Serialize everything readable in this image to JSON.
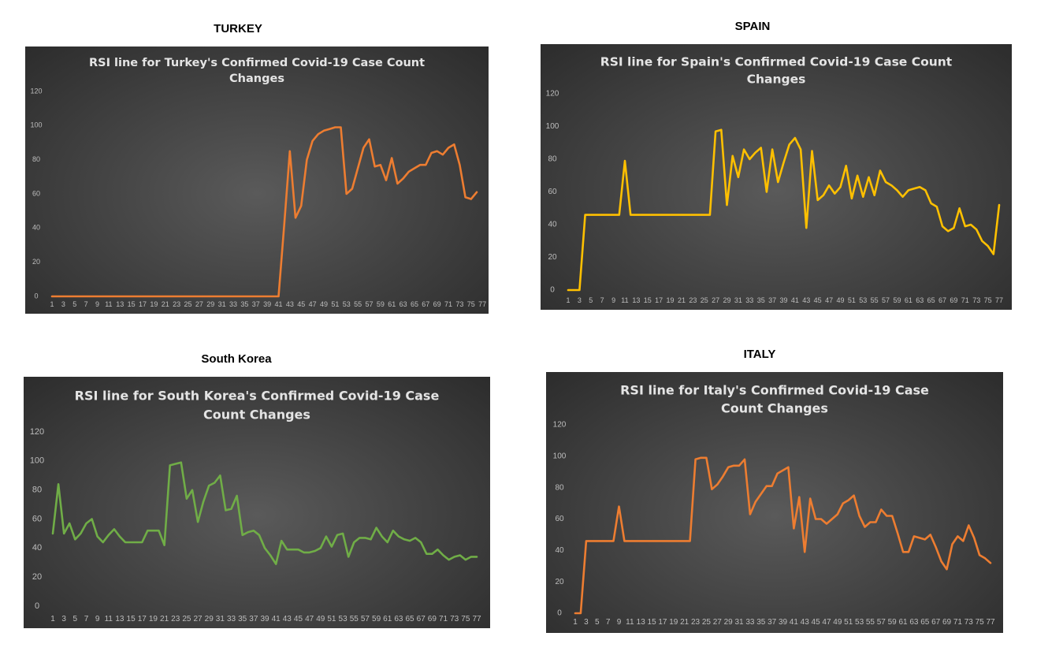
{
  "headings": {
    "turkey": "TURKEY",
    "spain": "SPAIN",
    "south_korea": "South Korea",
    "italy": "ITALY"
  },
  "chart_data": [
    {
      "id": "turkey",
      "type": "line",
      "title": "RSI line for Turkey's Confirmed Covid-19 Case Count Changes",
      "title_lines": [
        "RSI line for Turkey's Confirmed Covid-19 Case Count",
        "Changes"
      ],
      "color": "#ed7d31",
      "ylim": [
        0,
        120
      ],
      "yticks": [
        0,
        20,
        40,
        60,
        80,
        100,
        120
      ],
      "xticks": [
        "1",
        "3",
        "5",
        "7",
        "9",
        "11",
        "13",
        "15",
        "17",
        "19",
        "21",
        "23",
        "25",
        "27",
        "29",
        "31",
        "33",
        "35",
        "37",
        "39",
        "41",
        "43",
        "45",
        "47",
        "49",
        "51",
        "53",
        "55",
        "57",
        "59",
        "61",
        "63",
        "65",
        "67",
        "69",
        "71",
        "73",
        "75",
        "77"
      ],
      "series": [
        {
          "name": "RSI",
          "values": [
            0,
            0,
            0,
            0,
            0,
            0,
            0,
            0,
            0,
            0,
            0,
            0,
            0,
            0,
            0,
            0,
            0,
            0,
            0,
            0,
            0,
            0,
            0,
            0,
            0,
            0,
            0,
            0,
            0,
            0,
            0,
            0,
            0,
            0,
            0,
            0,
            0,
            0,
            0,
            0,
            0,
            42,
            85,
            46,
            53,
            80,
            91,
            95,
            97,
            98,
            99,
            99,
            60,
            63,
            75,
            87,
            92,
            76,
            77,
            68,
            81,
            66,
            69,
            73,
            75,
            77,
            77,
            84,
            85,
            83,
            87,
            89,
            77,
            58,
            57,
            61
          ]
        }
      ]
    },
    {
      "id": "spain",
      "type": "line",
      "title": "RSI line for Spain's Confirmed Covid-19 Case Count Changes",
      "title_lines": [
        "RSI line for Spain's Confirmed Covid-19 Case Count",
        "Changes"
      ],
      "color": "#ffc000",
      "ylim": [
        0,
        120
      ],
      "yticks": [
        0,
        20,
        40,
        60,
        80,
        100,
        120
      ],
      "xticks": [
        "1",
        "3",
        "5",
        "7",
        "9",
        "11",
        "13",
        "15",
        "17",
        "19",
        "21",
        "23",
        "25",
        "27",
        "29",
        "31",
        "33",
        "35",
        "37",
        "39",
        "41",
        "43",
        "45",
        "47",
        "49",
        "51",
        "53",
        "55",
        "57",
        "59",
        "61",
        "63",
        "65",
        "67",
        "69",
        "71",
        "73",
        "75",
        "77"
      ],
      "series": [
        {
          "name": "RSI",
          "values": [
            0,
            0,
            0,
            46,
            46,
            46,
            46,
            46,
            46,
            46,
            79,
            46,
            46,
            46,
            46,
            46,
            46,
            46,
            46,
            46,
            46,
            46,
            46,
            46,
            46,
            46,
            97,
            98,
            52,
            82,
            69,
            86,
            80,
            84,
            87,
            60,
            86,
            66,
            78,
            89,
            93,
            86,
            38,
            85,
            55,
            58,
            64,
            59,
            63,
            76,
            56,
            70,
            57,
            69,
            58,
            73,
            66,
            64,
            61,
            57,
            61,
            62,
            63,
            61,
            53,
            51,
            39,
            36,
            38,
            50,
            39,
            40,
            37,
            30,
            27,
            22,
            52
          ]
        }
      ]
    },
    {
      "id": "south_korea",
      "type": "line",
      "title": "RSI line for South Korea's Confirmed Covid-19 Case Count Changes",
      "title_lines": [
        "RSI line for South Korea's Confirmed Covid-19 Case",
        "Count Changes"
      ],
      "color": "#70ad47",
      "ylim": [
        0,
        120
      ],
      "yticks": [
        0,
        20,
        40,
        60,
        80,
        100,
        120
      ],
      "xticks": [
        "1",
        "3",
        "5",
        "7",
        "9",
        "11",
        "13",
        "15",
        "17",
        "19",
        "21",
        "23",
        "25",
        "27",
        "29",
        "31",
        "33",
        "35",
        "37",
        "39",
        "41",
        "43",
        "45",
        "47",
        "49",
        "51",
        "53",
        "55",
        "57",
        "59",
        "61",
        "63",
        "65",
        "67",
        "69",
        "71",
        "73",
        "75",
        "77"
      ],
      "series": [
        {
          "name": "RSI",
          "values": [
            50,
            84,
            50,
            57,
            46,
            50,
            57,
            60,
            48,
            44,
            49,
            53,
            48,
            44,
            44,
            44,
            44,
            52,
            52,
            52,
            42,
            97,
            98,
            99,
            74,
            80,
            58,
            72,
            83,
            85,
            90,
            66,
            67,
            76,
            49,
            51,
            52,
            49,
            40,
            35,
            29,
            45,
            39,
            39,
            39,
            37,
            37,
            38,
            40,
            48,
            41,
            49,
            50,
            34,
            44,
            47,
            47,
            46,
            54,
            48,
            44,
            52,
            48,
            46,
            45,
            47,
            44,
            36,
            36,
            39,
            35,
            32,
            34,
            35,
            32,
            34,
            34
          ]
        }
      ]
    },
    {
      "id": "italy",
      "type": "line",
      "title": "RSI line for Italy's Confirmed Covid-19 Case Count Changes",
      "title_lines": [
        "RSI line for Italy's Confirmed Covid-19 Case",
        "Count Changes"
      ],
      "color": "#ed7d31",
      "ylim": [
        0,
        120
      ],
      "yticks": [
        0,
        20,
        40,
        60,
        80,
        100,
        120
      ],
      "xticks": [
        "1",
        "3",
        "5",
        "7",
        "9",
        "11",
        "13",
        "15",
        "17",
        "19",
        "21",
        "23",
        "25",
        "27",
        "29",
        "31",
        "33",
        "35",
        "37",
        "39",
        "41",
        "43",
        "45",
        "47",
        "49",
        "51",
        "53",
        "55",
        "57",
        "59",
        "61",
        "63",
        "65",
        "67",
        "69",
        "71",
        "73",
        "75",
        "77"
      ],
      "series": [
        {
          "name": "RSI",
          "values": [
            0,
            0,
            46,
            46,
            46,
            46,
            46,
            46,
            68,
            46,
            46,
            46,
            46,
            46,
            46,
            46,
            46,
            46,
            46,
            46,
            46,
            46,
            98,
            99,
            99,
            79,
            82,
            87,
            93,
            94,
            94,
            98,
            63,
            71,
            76,
            81,
            81,
            89,
            91,
            93,
            54,
            74,
            39,
            73,
            60,
            60,
            57,
            60,
            63,
            70,
            72,
            75,
            62,
            55,
            58,
            58,
            66,
            62,
            62,
            51,
            39,
            39,
            49,
            48,
            47,
            50,
            42,
            33,
            28,
            44,
            49,
            46,
            56,
            48,
            37,
            35,
            32
          ]
        }
      ]
    }
  ]
}
